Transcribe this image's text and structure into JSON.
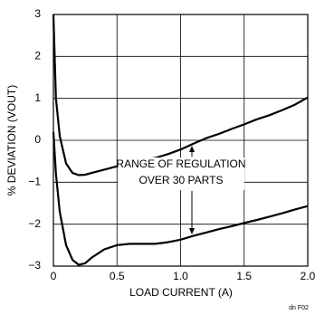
{
  "chart_data": {
    "type": "line",
    "x_label": "LOAD CURRENT (A)",
    "y_label": "% DEVIATION (VOUT)",
    "annotations": [
      "RANGE OF REGULATION",
      "OVER 30 PARTS"
    ],
    "footnote": "dn F02",
    "x": [
      0,
      0.02,
      0.05,
      0.1,
      0.15,
      0.2,
      0.25,
      0.3,
      0.4,
      0.5,
      0.6,
      0.7,
      0.8,
      0.9,
      1.0,
      1.1,
      1.2,
      1.3,
      1.4,
      1.5,
      1.6,
      1.7,
      1.8,
      1.9,
      2.0
    ],
    "series": [
      {
        "color": "#000000",
        "values": [
          3,
          1.0,
          0.1,
          -0.55,
          -0.78,
          -0.83,
          -0.82,
          -0.78,
          -0.7,
          -0.62,
          -0.55,
          -0.48,
          -0.42,
          -0.33,
          -0.22,
          -0.08,
          0.05,
          0.15,
          0.27,
          0.38,
          0.5,
          0.6,
          0.72,
          0.85,
          1.02
        ]
      },
      {
        "color": "#000000",
        "values": [
          0.2,
          -0.8,
          -1.7,
          -2.5,
          -2.85,
          -2.97,
          -2.93,
          -2.8,
          -2.6,
          -2.5,
          -2.47,
          -2.47,
          -2.47,
          -2.43,
          -2.37,
          -2.28,
          -2.2,
          -2.12,
          -2.05,
          -1.97,
          -1.9,
          -1.82,
          -1.74,
          -1.65,
          -1.57
        ]
      }
    ],
    "xlim": [
      0,
      2
    ],
    "xticks": [
      0,
      0.5,
      {
        "value": 1,
        "label": "1.0"
      },
      1.5,
      {
        "value": 2,
        "label": "2.0"
      }
    ],
    "ylim": [
      -3,
      3
    ],
    "yticks": [
      {
        "value": -3,
        "label": "−3"
      },
      {
        "value": -2,
        "label": "−2"
      },
      {
        "value": -1,
        "label": "−1"
      },
      0,
      1,
      2,
      3
    ],
    "grid": true
  }
}
